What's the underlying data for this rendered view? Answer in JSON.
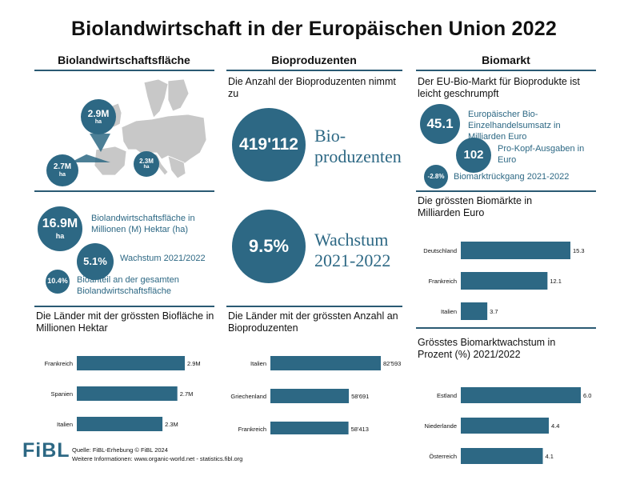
{
  "title": "Biolandwirtschaft in der Europäischen Union 2022",
  "columns": {
    "col1": "Biolandwirtschaftsfläche",
    "col2": "Bioproduzenten",
    "col3": "Biomarkt"
  },
  "map": {
    "b1_value": "2.9M",
    "b1_unit": "ha",
    "b2_value": "2.7M",
    "b2_unit": "ha",
    "b3_value": "2.3M",
    "b3_unit": "ha"
  },
  "area": {
    "total_value": "16.9M",
    "total_unit": "ha",
    "total_label": "Biolandwirtschaftsfläche in Millionen (M) Hektar (ha)",
    "growth_value": "5.1%",
    "growth_label": "Wachstum 2021/2022",
    "share_value": "10.4%",
    "share_label": "Bioanteil an der gesamten Biolandwirtschaftsfläche"
  },
  "producers": {
    "heading": "Die Anzahl der Bioproduzenten nimmt zu",
    "count_value": "419'112",
    "count_label_1": "Bio-",
    "count_label_2": "produzenten",
    "growth_value": "9.5%",
    "growth_label_1": "Wachstum",
    "growth_label_2": "2021-2022"
  },
  "market": {
    "heading": "Der EU-Bio-Markt für Bioprodukte ist leicht geschrumpft",
    "retail_value": "45.1",
    "retail_label": "Europäischer Bio-Einzelhandelsumsatz in Milliarden Euro",
    "percap_value": "102",
    "percap_label": "Pro-Kopf-Ausgaben in Euro",
    "decline_value": "-2.8%",
    "decline_label": "Biomarktrückgang 2021-2022"
  },
  "footer": {
    "logo": "FiBL",
    "source": "Quelle: FiBL-Erhebung © FiBL 2024",
    "more": "Weitere Informationen: www.organic-world.net - statistics.fibl.org"
  },
  "colors": {
    "accent": "#2d6884",
    "bar": "#2d6884",
    "rule": "#2a5a73",
    "map_land": "#c8c8c8",
    "map_sea": "#ffffff"
  },
  "chart_data": [
    {
      "type": "bar",
      "orientation": "horizontal",
      "title": "Die Länder mit der grössten Biofläche in Millionen Hektar",
      "categories": [
        "Frankreich",
        "Spanien",
        "Italien"
      ],
      "values": [
        2.9,
        2.7,
        2.3
      ],
      "value_labels": [
        "2.9M",
        "2.7M",
        "2.3M"
      ],
      "xlim": [
        0,
        2.9
      ]
    },
    {
      "type": "bar",
      "orientation": "horizontal",
      "title": "Die Länder mit der grössten Anzahl an Bioproduzenten",
      "categories": [
        "Italien",
        "Griechenland",
        "Frankreich"
      ],
      "values": [
        82593,
        58691,
        58413
      ],
      "value_labels": [
        "82'593",
        "58'691",
        "58'413"
      ],
      "xlim": [
        0,
        82593
      ]
    },
    {
      "type": "bar",
      "orientation": "horizontal",
      "title": "Die grössten Biomärkte in Milliarden Euro",
      "categories": [
        "Deutschland",
        "Frankreich",
        "Italien"
      ],
      "values": [
        15.3,
        12.1,
        3.7
      ],
      "value_labels": [
        "15.3",
        "12.1",
        "3.7"
      ],
      "xlim": [
        0,
        15.3
      ]
    },
    {
      "type": "bar",
      "orientation": "horizontal",
      "title": "Grösstes Biomarktwachstum in Prozent (%) 2021/2022",
      "categories": [
        "Estland",
        "Niederlande",
        "Österreich"
      ],
      "values": [
        6.0,
        4.4,
        4.1
      ],
      "value_labels": [
        "6.0",
        "4.4",
        "4.1"
      ],
      "xlim": [
        0,
        6.0
      ]
    }
  ]
}
